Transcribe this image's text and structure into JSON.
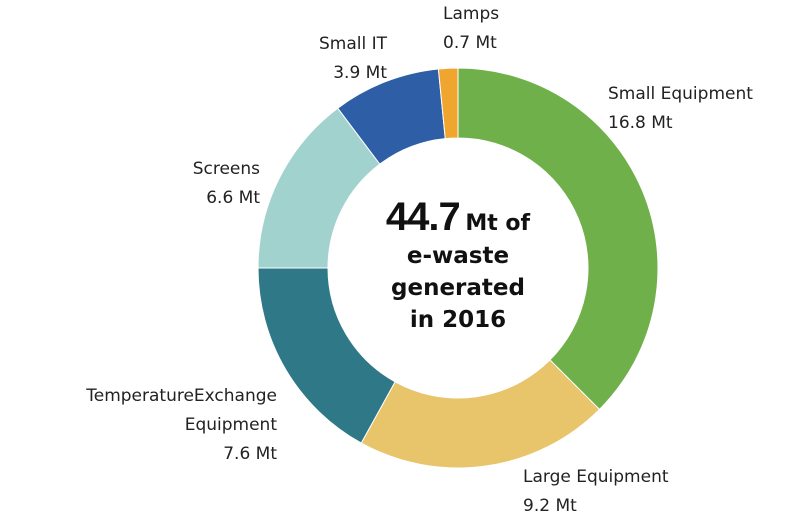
{
  "chart_data": {
    "type": "donut",
    "categories": [
      "Small Equipment",
      "Large Equipment",
      "TemperatureExchange Equipment",
      "Screens",
      "Small IT",
      "Lamps"
    ],
    "values": [
      16.8,
      9.2,
      7.6,
      6.6,
      3.9,
      0.7
    ],
    "value_labels": [
      "16.8 Mt",
      "9.2 Mt",
      "7.6 Mt",
      "6.6 Mt",
      "3.9 Mt",
      "0.7 Mt"
    ],
    "colors": [
      "#70b04b",
      "#e8c46a",
      "#2e7888",
      "#a2d2cd",
      "#2d5ea6",
      "#f0a52e"
    ],
    "center_value": 44.7,
    "center_lines": [
      "Mt of",
      "e-waste",
      "generated",
      "in 2016"
    ]
  }
}
